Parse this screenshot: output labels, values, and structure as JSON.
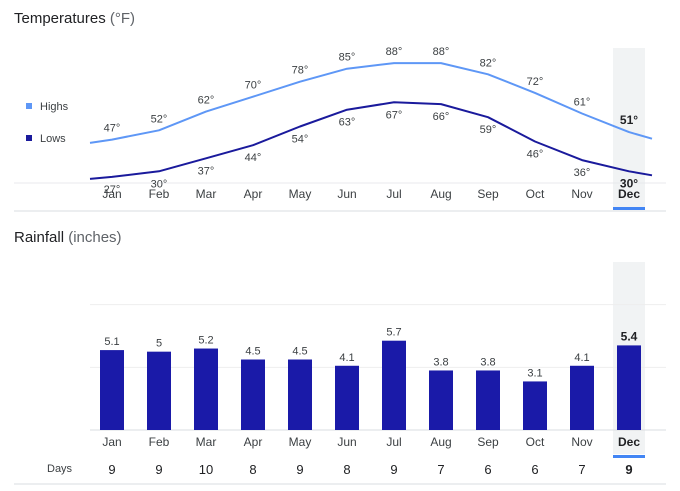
{
  "temperature": {
    "title": "Temperatures",
    "unit": "(°F)",
    "legend": {
      "highs": "Highs",
      "lows": "Lows"
    },
    "colors": {
      "highs": "#5e97f6",
      "lows": "#1a1a9c"
    }
  },
  "rainfall": {
    "title": "Rainfall",
    "unit": "(inches)",
    "bar_color": "#1a1aa8",
    "days_label": "Days"
  },
  "selected_month": "Dec",
  "chart_data": [
    {
      "type": "line",
      "categories": [
        "Jan",
        "Feb",
        "Mar",
        "Apr",
        "May",
        "Jun",
        "Jul",
        "Aug",
        "Sep",
        "Oct",
        "Nov",
        "Dec"
      ],
      "series": [
        {
          "name": "Highs",
          "values": [
            47,
            52,
            62,
            70,
            78,
            85,
            88,
            88,
            82,
            72,
            61,
            51
          ],
          "labels": [
            "47°",
            "52°",
            "62°",
            "70°",
            "78°",
            "85°",
            "88°",
            "88°",
            "82°",
            "72°",
            "61°",
            "51°"
          ]
        },
        {
          "name": "Lows",
          "values": [
            27,
            30,
            37,
            44,
            54,
            63,
            67,
            66,
            59,
            46,
            36,
            30
          ],
          "labels": [
            "27°",
            "30°",
            "37°",
            "44°",
            "54°",
            "63°",
            "67°",
            "66°",
            "59°",
            "46°",
            "36°",
            "30°"
          ]
        }
      ],
      "ylim": [
        20,
        95
      ],
      "legend": "left"
    },
    {
      "type": "bar",
      "categories": [
        "Jan",
        "Feb",
        "Mar",
        "Apr",
        "May",
        "Jun",
        "Jul",
        "Aug",
        "Sep",
        "Oct",
        "Nov",
        "Dec"
      ],
      "values": [
        5.1,
        5,
        5.2,
        4.5,
        4.5,
        4.1,
        5.7,
        3.8,
        3.8,
        3.1,
        4.1,
        5.4
      ],
      "labels": [
        "5.1",
        "5",
        "5.2",
        "4.5",
        "4.5",
        "4.1",
        "5.7",
        "3.8",
        "3.8",
        "3.1",
        "4.1",
        "5.4"
      ],
      "ylim": [
        0,
        12
      ],
      "days": [
        9,
        9,
        10,
        8,
        9,
        8,
        9,
        7,
        6,
        6,
        7,
        9
      ]
    }
  ]
}
